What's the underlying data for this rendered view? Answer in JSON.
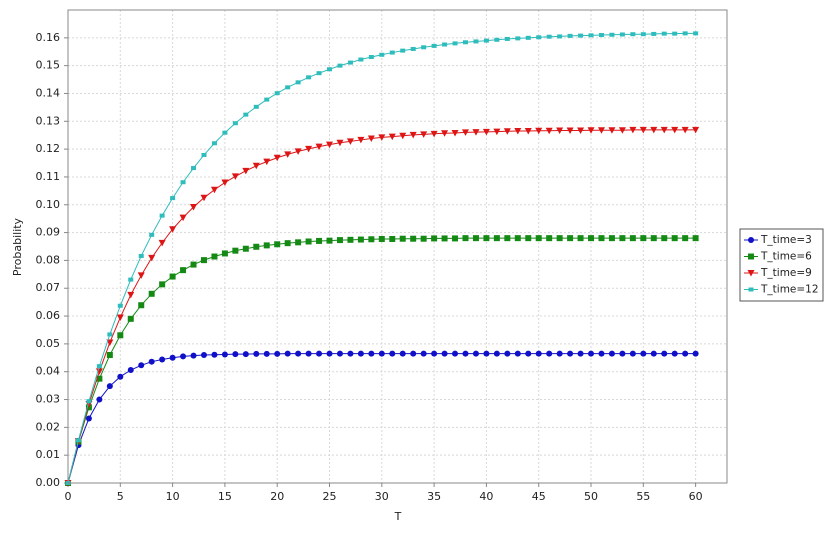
{
  "chart_data": {
    "type": "line",
    "xlabel": "T",
    "ylabel": "Probability",
    "x": [
      0,
      1,
      2,
      3,
      4,
      5,
      6,
      7,
      8,
      9,
      10,
      11,
      12,
      13,
      14,
      15,
      16,
      17,
      18,
      19,
      20,
      21,
      22,
      23,
      24,
      25,
      26,
      27,
      28,
      29,
      30,
      31,
      32,
      33,
      34,
      35,
      36,
      37,
      38,
      39,
      40,
      41,
      42,
      43,
      44,
      45,
      46,
      47,
      48,
      49,
      50,
      51,
      52,
      53,
      54,
      55,
      56,
      57,
      58,
      59,
      60
    ],
    "series": [
      {
        "name": "T_time=3",
        "color": "#1010c8",
        "marker": "circle",
        "values": [
          0,
          0.0136,
          0.0232,
          0.03,
          0.0348,
          0.0382,
          0.0406,
          0.0423,
          0.0436,
          0.0444,
          0.045,
          0.0455,
          0.0458,
          0.046,
          0.0461,
          0.0462,
          0.0463,
          0.0463,
          0.0464,
          0.0464,
          0.0464,
          0.0465,
          0.0465,
          0.0465,
          0.0465,
          0.0465,
          0.0465,
          0.0465,
          0.0465,
          0.0465,
          0.0465,
          0.0465,
          0.0465,
          0.0465,
          0.0465,
          0.0465,
          0.0465,
          0.0465,
          0.0465,
          0.0465,
          0.0465,
          0.0465,
          0.0465,
          0.0465,
          0.0465,
          0.0465,
          0.0465,
          0.0465,
          0.0465,
          0.0465,
          0.0465,
          0.0465,
          0.0465,
          0.0465,
          0.0465,
          0.0465,
          0.0465,
          0.0465,
          0.0465,
          0.0465,
          0.0465
        ]
      },
      {
        "name": "T_time=6",
        "color": "#148a14",
        "marker": "square",
        "values": [
          0,
          0.0149,
          0.0272,
          0.0375,
          0.046,
          0.0531,
          0.059,
          0.0639,
          0.068,
          0.0714,
          0.0742,
          0.0765,
          0.0785,
          0.0801,
          0.0814,
          0.0825,
          0.0835,
          0.0842,
          0.0849,
          0.0854,
          0.0858,
          0.0862,
          0.0865,
          0.0868,
          0.087,
          0.0871,
          0.0873,
          0.0874,
          0.0875,
          0.0876,
          0.0877,
          0.0877,
          0.0878,
          0.0878,
          0.0878,
          0.0879,
          0.0879,
          0.0879,
          0.088,
          0.088,
          0.088,
          0.088,
          0.088,
          0.088,
          0.088,
          0.088,
          0.088,
          0.088,
          0.088,
          0.088,
          0.088,
          0.088,
          0.088,
          0.088,
          0.088,
          0.088,
          0.088,
          0.088,
          0.088,
          0.088,
          0.088
        ]
      },
      {
        "name": "T_time=9",
        "color": "#dd1515",
        "marker": "triangle-down",
        "values": [
          0,
          0.0151,
          0.0284,
          0.0401,
          0.0505,
          0.0595,
          0.0676,
          0.0746,
          0.0809,
          0.0863,
          0.0912,
          0.0954,
          0.0992,
          0.1025,
          0.1054,
          0.108,
          0.1102,
          0.1122,
          0.114,
          0.1155,
          0.1169,
          0.1181,
          0.1192,
          0.1201,
          0.1209,
          0.1216,
          0.1223,
          0.1228,
          0.1233,
          0.1238,
          0.1242,
          0.1245,
          0.1248,
          0.1251,
          0.1253,
          0.1255,
          0.1257,
          0.1258,
          0.126,
          0.1261,
          0.1262,
          0.1263,
          0.1264,
          0.1265,
          0.1265,
          0.1266,
          0.1266,
          0.1267,
          0.1267,
          0.1267,
          0.1268,
          0.1268,
          0.1268,
          0.1268,
          0.1269,
          0.1269,
          0.1269,
          0.1269,
          0.1269,
          0.1269,
          0.1269
        ]
      },
      {
        "name": "T_time=12",
        "color": "#2ebcbc",
        "marker": "small-square",
        "values": [
          0,
          0.0154,
          0.0294,
          0.042,
          0.0534,
          0.0637,
          0.0731,
          0.0816,
          0.0892,
          0.0961,
          0.1024,
          0.1081,
          0.1132,
          0.1179,
          0.1221,
          0.1259,
          0.1293,
          0.1324,
          0.1352,
          0.1378,
          0.1401,
          0.1422,
          0.144,
          0.1458,
          0.1473,
          0.1487,
          0.15,
          0.1511,
          0.1522,
          0.1531,
          0.1539,
          0.1547,
          0.1554,
          0.156,
          0.1566,
          0.1571,
          0.1576,
          0.158,
          0.1584,
          0.1587,
          0.159,
          0.1593,
          0.1596,
          0.1598,
          0.16,
          0.1602,
          0.1604,
          0.1605,
          0.1607,
          0.1608,
          0.1609,
          0.161,
          0.1611,
          0.1612,
          0.1613,
          0.1613,
          0.1614,
          0.1615,
          0.1615,
          0.1616,
          0.1616
        ]
      }
    ],
    "xlim": [
      0,
      63
    ],
    "ylim": [
      0,
      0.17
    ],
    "xticks": [
      0,
      5,
      10,
      15,
      20,
      25,
      30,
      35,
      40,
      45,
      50,
      55,
      60
    ],
    "yticks": [
      {
        "value": 0,
        "label": "0.00"
      },
      {
        "value": 0.01,
        "label": "0.01"
      },
      {
        "value": 0.02,
        "label": "0.02"
      },
      {
        "value": 0.03,
        "label": "0.03"
      },
      {
        "value": 0.04,
        "label": "0.04"
      },
      {
        "value": 0.05,
        "label": "0.05"
      },
      {
        "value": 0.06,
        "label": "0.06"
      },
      {
        "value": 0.07,
        "label": "0.07"
      },
      {
        "value": 0.08,
        "label": "0.08"
      },
      {
        "value": 0.09,
        "label": "0.09"
      },
      {
        "value": 0.1,
        "label": "0.10"
      },
      {
        "value": 0.11,
        "label": "0.11"
      },
      {
        "value": 0.12,
        "label": "0.12"
      },
      {
        "value": 0.13,
        "label": "0.13"
      },
      {
        "value": 0.14,
        "label": "0.14"
      },
      {
        "value": 0.15,
        "label": "0.15"
      },
      {
        "value": 0.16,
        "label": "0.16"
      }
    ],
    "grid": true,
    "legend": "right"
  }
}
